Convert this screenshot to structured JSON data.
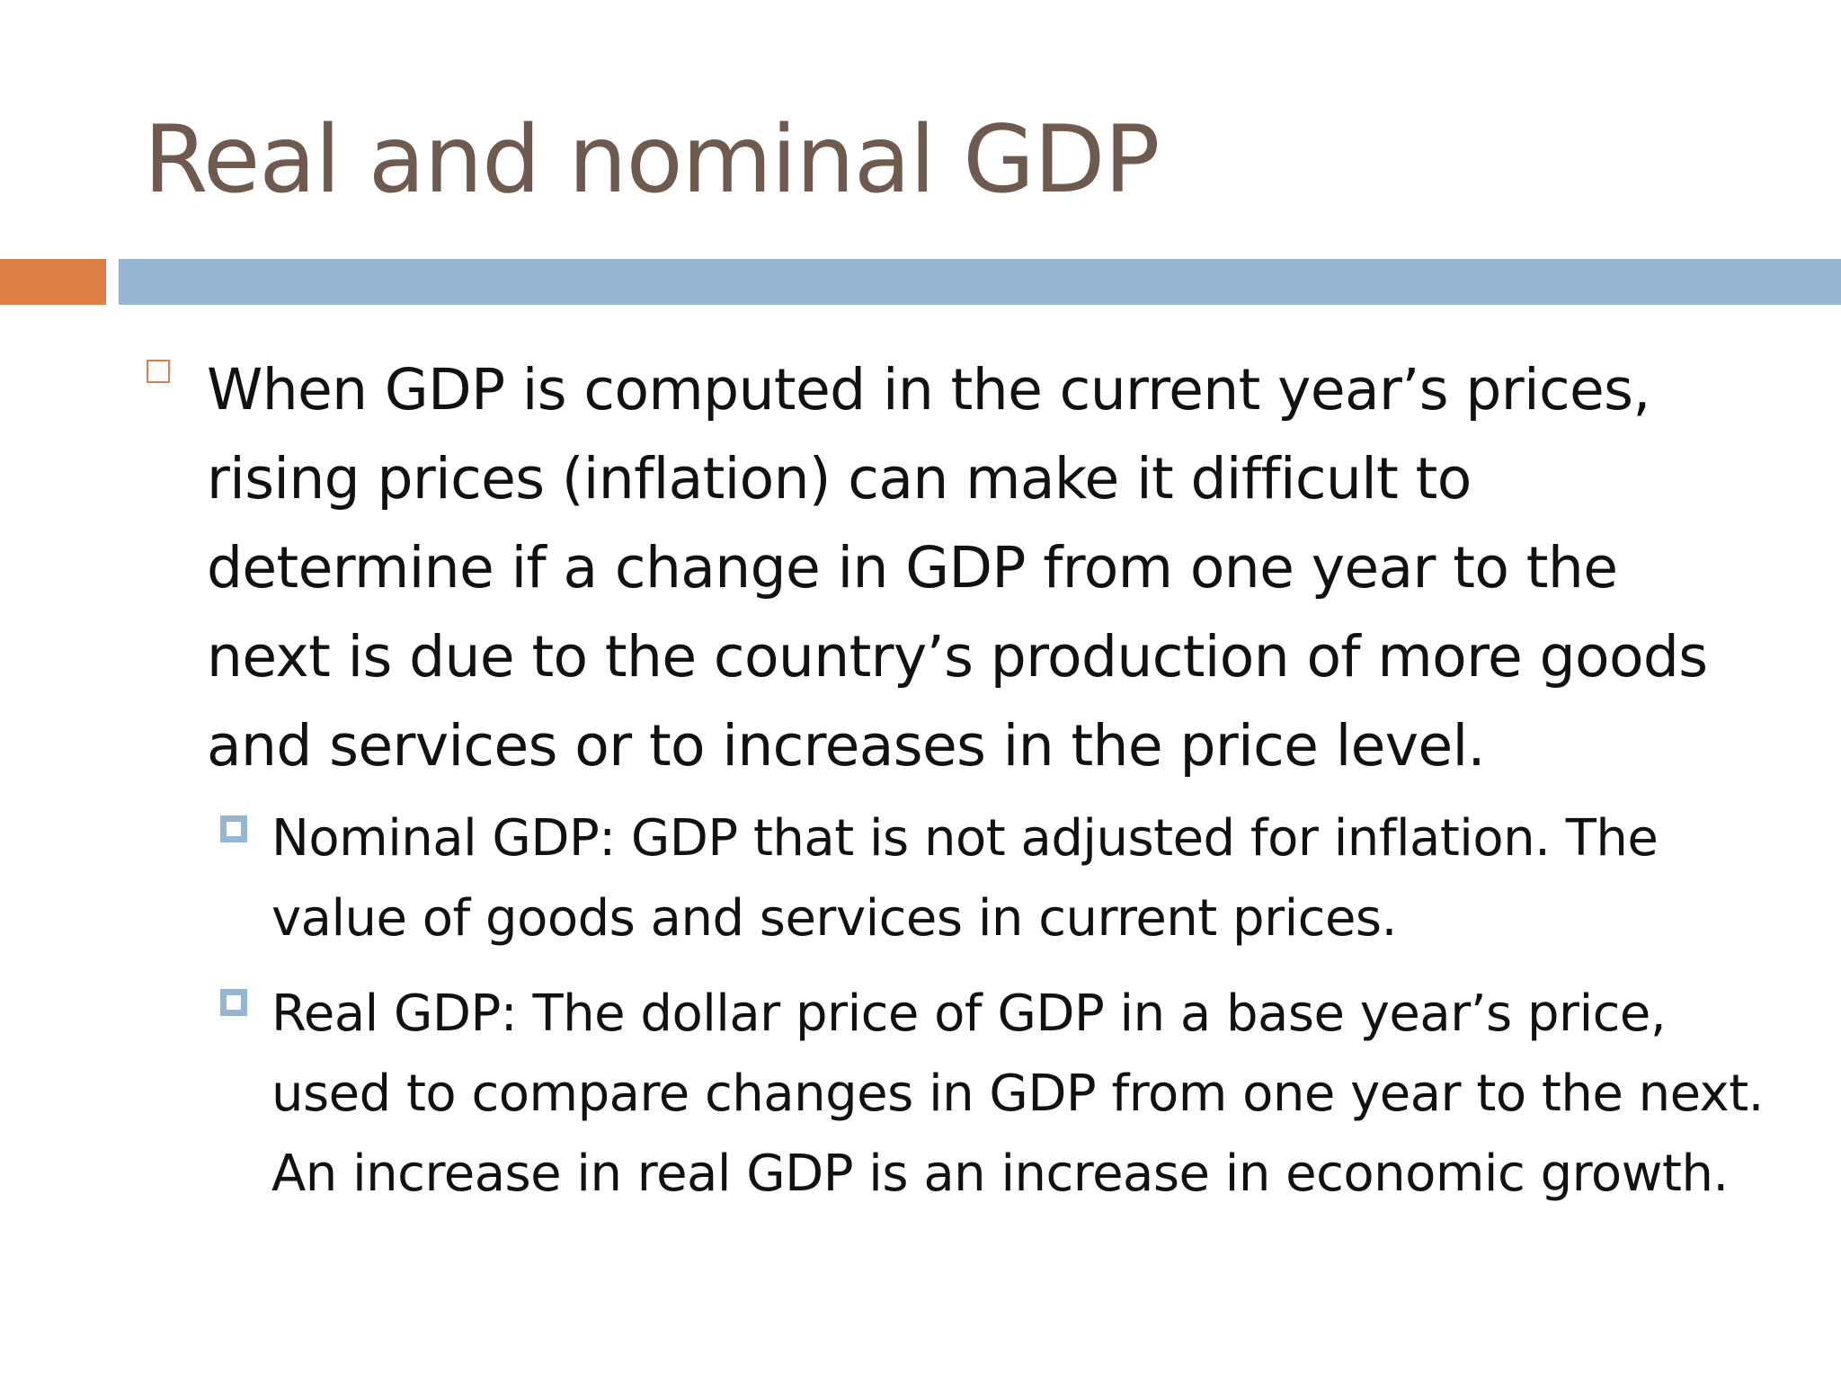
{
  "slide": {
    "title": "Real and nominal GDP",
    "colors": {
      "title": "#6f5a4f",
      "accent_bar": "#dd8047",
      "main_bar": "#94b6d2",
      "bullet_l1_marker": "#dd8047",
      "bullet_l2_marker": "#94b6d2"
    },
    "bullets": [
      {
        "level": 1,
        "marker_icon": "hollow-square-icon",
        "text": "When GDP is computed in the current year’s prices, rising prices (inflation) can make it difficult to determine if a change in GDP from one year to the next is due to the country’s production of more goods and services or to increases in the price level."
      },
      {
        "level": 2,
        "marker_icon": "framed-square-icon",
        "text": "Nominal GDP: GDP that is not adjusted for inflation. The value of goods and services in current prices."
      },
      {
        "level": 2,
        "marker_icon": "framed-square-icon",
        "text": "Real GDP: The dollar price of GDP in a base year’s price, used to compare changes in GDP from one year to the next. An increase in real GDP is an increase in economic growth."
      }
    ]
  }
}
